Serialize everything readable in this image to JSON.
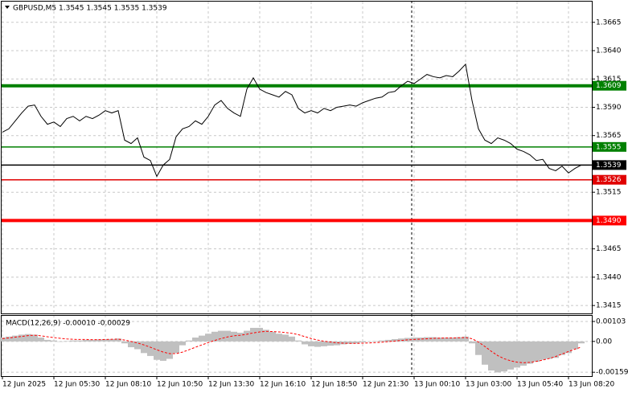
{
  "chart_data": [
    {
      "type": "line",
      "title": "GBPUSD,M5  1.3545 1.3545 1.3535 1.3539",
      "color": "#000000",
      "categories": [
        "12 Jun 2025",
        null,
        null,
        null,
        null,
        null,
        null,
        null,
        "12 Jun 05:30",
        null,
        null,
        null,
        null,
        null,
        null,
        null,
        "12 Jun 08:10",
        null,
        null,
        null,
        null,
        null,
        null,
        null,
        "12 Jun 10:50",
        null,
        null,
        null,
        null,
        null,
        null,
        null,
        "12 Jun 13:30",
        null,
        null,
        null,
        null,
        null,
        null,
        null,
        "12 Jun 16:10",
        null,
        null,
        null,
        null,
        null,
        null,
        null,
        "12 Jun 18:50",
        null,
        null,
        null,
        null,
        null,
        null,
        null,
        "12 Jun 21:30",
        null,
        null,
        null,
        null,
        null,
        null,
        null,
        "13 Jun 00:10",
        null,
        null,
        null,
        null,
        null,
        null,
        null,
        "13 Jun 03:00",
        null,
        null,
        null,
        null,
        null,
        null,
        null,
        "13 Jun 05:40",
        null,
        null,
        null,
        null,
        null,
        null,
        null,
        "13 Jun 08:20",
        null,
        null
      ],
      "values": [
        1.3568,
        1.3571,
        1.3578,
        1.3585,
        1.3591,
        1.3592,
        1.3582,
        1.3575,
        1.3577,
        1.3573,
        1.358,
        1.3582,
        1.3578,
        1.3582,
        1.358,
        1.3583,
        1.3587,
        1.3585,
        1.3587,
        1.3561,
        1.3558,
        1.3563,
        1.3546,
        1.3543,
        1.3529,
        1.3539,
        1.3544,
        1.3564,
        1.3571,
        1.3573,
        1.3578,
        1.3575,
        1.3582,
        1.3592,
        1.3596,
        1.3589,
        1.3585,
        1.3582,
        1.3606,
        1.3616,
        1.3606,
        1.3603,
        1.3601,
        1.3599,
        1.3604,
        1.3601,
        1.3589,
        1.3585,
        1.3587,
        1.3585,
        1.3589,
        1.3587,
        1.359,
        1.3591,
        1.3592,
        1.3591,
        1.3594,
        1.3596,
        1.3598,
        1.3599,
        1.3603,
        1.3604,
        1.3609,
        1.3613,
        1.3611,
        1.3615,
        1.3619,
        1.3617,
        1.3616,
        1.3618,
        1.3617,
        1.3622,
        1.3628,
        1.3596,
        1.3571,
        1.3561,
        1.3558,
        1.3563,
        1.3561,
        1.3558,
        1.3553,
        1.3551,
        1.3548,
        1.3543,
        1.3544,
        1.3536,
        1.3534,
        1.3538,
        1.3532,
        1.3536,
        1.3539
      ],
      "ylim": [
        1.3408,
        1.3684
      ],
      "yticks": [
        1.3665,
        {
          "value": 1.364,
          "label": "1.3640"
        },
        1.3615,
        {
          "value": 1.359,
          "label": "1.3590"
        },
        1.3565,
        1.3515,
        1.3465,
        {
          "value": 1.344,
          "label": "1.3440"
        },
        1.3415
      ],
      "grid": true,
      "levels": [
        {
          "value": 1.3609,
          "color": "#008000",
          "thick": true
        },
        {
          "value": 1.3555,
          "color": "#008000",
          "thick": false
        },
        {
          "value": 1.3539,
          "color": "#000000",
          "thick": false
        },
        {
          "value": 1.3526,
          "color": "#e00000",
          "thick": false
        },
        {
          "value": 1.349,
          "label": "1.3490",
          "color": "#ff0000",
          "thick": true
        }
      ]
    },
    {
      "type": "bar",
      "title": "MACD(12,26,9) -0.00010 -0.00029",
      "series": [
        {
          "color": "#c0c0c0",
          "values": [
            0.0002,
            0.00025,
            0.0003,
            0.00035,
            0.00038,
            0.00035,
            0.0002,
            8e-05,
            5e-05,
            0,
            2e-05,
            5e-05,
            5e-05,
            8e-05,
            8e-05,
            0.0001,
            0.00012,
            0.00012,
            0.00015,
            -0.0001,
            -0.0003,
            -0.0004,
            -0.0006,
            -0.00075,
            -0.00095,
            -0.001,
            -0.0009,
            -0.0006,
            -0.0002,
            5e-05,
            0.0002,
            0.0003,
            0.0004,
            0.0005,
            0.00055,
            0.00055,
            0.0005,
            0.00045,
            0.00055,
            0.0007,
            0.0007,
            0.0006,
            0.0005,
            0.0004,
            0.00035,
            0.00025,
            5e-05,
            -0.00015,
            -0.00025,
            -0.00028,
            -0.00025,
            -0.00022,
            -0.0002,
            -0.00015,
            -0.00012,
            -0.0001,
            -5e-05,
            -2e-05,
            2e-05,
            5e-05,
            8e-05,
            0.00012,
            0.00015,
            0.00018,
            0.0002,
            0.0002,
            0.00022,
            0.00022,
            0.0002,
            0.0002,
            0.0002,
            0.00022,
            0.00025,
            -0.0001,
            -0.0007,
            -0.0012,
            -0.0015,
            -0.0016,
            -0.00155,
            -0.00145,
            -0.00135,
            -0.00125,
            -0.00115,
            -0.00105,
            -0.00095,
            -0.0009,
            -0.00085,
            -0.0007,
            -0.0006,
            -0.0004,
            -0.0001
          ]
        },
        {
          "color": "#ff0000",
          "type": "line",
          "values": [
            0.00015,
            0.00018,
            0.00022,
            0.00026,
            0.0003,
            0.00032,
            0.00029,
            0.00024,
            0.0002,
            0.00016,
            0.00013,
            0.00011,
            0.0001,
            0.0001,
            9e-05,
            9e-05,
            0.0001,
            0.00011,
            0.00012,
            7e-05,
            0,
            -8e-05,
            -0.00018,
            -0.0003,
            -0.00043,
            -0.00055,
            -0.00063,
            -0.00063,
            -0.00055,
            -0.00043,
            -0.0003,
            -0.00018,
            -6e-05,
            5e-05,
            0.00015,
            0.00023,
            0.00029,
            0.00032,
            0.00037,
            0.00044,
            0.00049,
            0.00052,
            0.00051,
            0.00049,
            0.00046,
            0.00042,
            0.00035,
            0.00025,
            0.00015,
            7e-05,
            1e-05,
            -3e-05,
            -7e-05,
            -9e-05,
            -0.0001,
            -0.0001,
            -9e-05,
            -8e-05,
            -6e-05,
            -4e-05,
            -1e-05,
            2e-05,
            5e-05,
            8e-05,
            0.0001,
            0.00012,
            0.00014,
            0.00016,
            0.00017,
            0.00018,
            0.00018,
            0.00019,
            0.0002,
            0.00014,
            -3e-05,
            -0.00026,
            -0.00051,
            -0.00073,
            -0.00089,
            -0.001,
            -0.00107,
            -0.0011,
            -0.00108,
            -0.00103,
            -0.00096,
            -0.00088,
            -0.00078,
            -0.00065,
            -0.00052,
            -0.0004,
            -0.00029
          ]
        }
      ],
      "ylim": [
        -0.00179,
        0.00132
      ],
      "yticks": [
        0.00103,
        {
          "value": 0,
          "label": "0.00"
        },
        -0.00159
      ],
      "grid": true
    }
  ]
}
